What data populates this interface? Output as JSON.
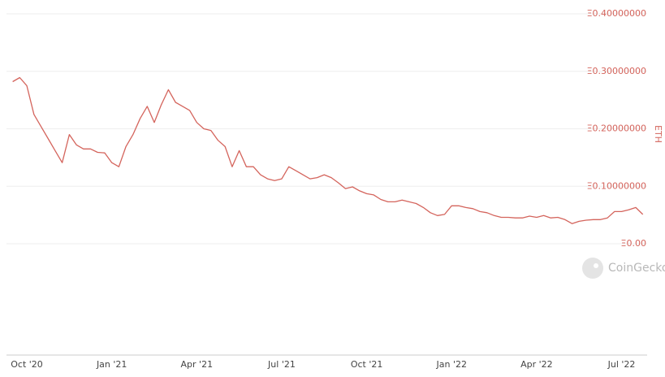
{
  "chart_data": {
    "type": "line",
    "y_axis_label": "ETH",
    "watermark": "CoinGecko",
    "categories": [
      null,
      null,
      "Oct '20",
      null,
      null,
      null,
      null,
      null,
      null,
      null,
      null,
      null,
      null,
      null,
      "Jan '21",
      null,
      null,
      null,
      null,
      null,
      null,
      null,
      null,
      null,
      null,
      null,
      "Apr '21",
      null,
      null,
      null,
      null,
      null,
      null,
      null,
      null,
      null,
      null,
      null,
      "Jul '21",
      null,
      null,
      null,
      null,
      null,
      null,
      null,
      null,
      null,
      null,
      null,
      "Oct '21",
      null,
      null,
      null,
      null,
      null,
      null,
      null,
      null,
      null,
      null,
      null,
      "Jan '22",
      null,
      null,
      null,
      null,
      null,
      null,
      null,
      null,
      null,
      null,
      null,
      "Apr '22",
      null,
      null,
      null,
      null,
      null,
      null,
      null,
      null,
      null,
      null,
      null,
      "Jul '22",
      null,
      null,
      null
    ],
    "values": [
      0.282,
      0.289,
      0.275,
      0.225,
      0.204,
      0.183,
      0.162,
      0.141,
      0.19,
      0.172,
      0.165,
      0.165,
      0.159,
      0.158,
      0.141,
      0.134,
      0.169,
      0.19,
      0.218,
      0.239,
      0.211,
      0.242,
      0.268,
      0.246,
      0.239,
      0.232,
      0.211,
      0.2,
      0.197,
      0.18,
      0.169,
      0.134,
      0.162,
      0.134,
      0.134,
      0.12,
      0.113,
      0.11,
      0.113,
      0.134,
      0.127,
      0.12,
      0.113,
      0.115,
      0.12,
      0.115,
      0.106,
      0.096,
      0.099,
      0.092,
      0.087,
      0.085,
      0.077,
      0.073,
      0.073,
      0.076,
      0.073,
      0.07,
      0.063,
      0.054,
      0.049,
      0.051,
      0.066,
      0.066,
      0.063,
      0.061,
      0.056,
      0.054,
      0.049,
      0.046,
      0.046,
      0.045,
      0.045,
      0.048,
      0.046,
      0.049,
      0.045,
      0.046,
      0.042,
      0.035,
      0.039,
      0.041,
      0.042,
      0.042,
      0.045,
      0.056,
      0.056,
      0.059,
      0.063,
      0.051
    ],
    "color": "#d4645c",
    "ylim": [
      0,
      0.4
    ],
    "yticks": [
      {
        "value": 0,
        "label": "Ξ0.00"
      },
      {
        "value": 0.1,
        "label": "Ξ0.10000000"
      },
      {
        "value": 0.2,
        "label": "Ξ0.20000000"
      },
      {
        "value": 0.3,
        "label": "Ξ0.30000000"
      },
      {
        "value": 0.4,
        "label": "Ξ0.40000000"
      }
    ],
    "grid": true
  }
}
